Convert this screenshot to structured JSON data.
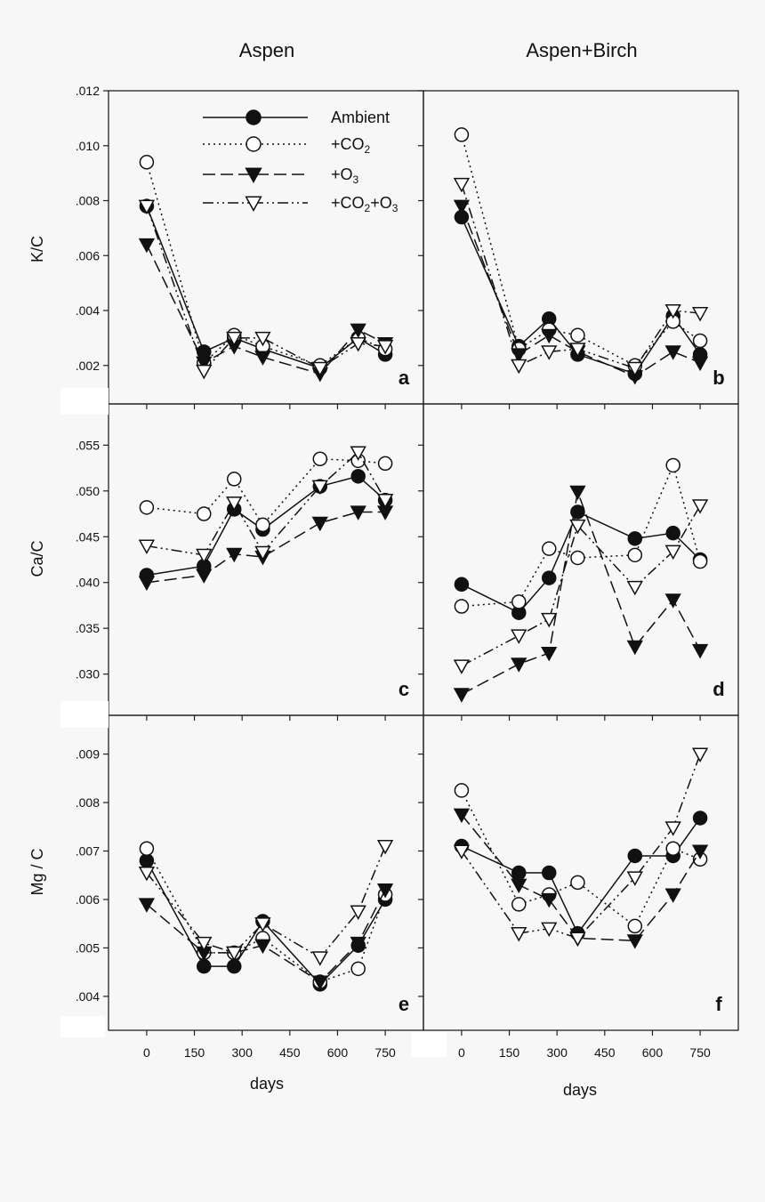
{
  "columns": [
    "Aspen",
    "Aspen+Birch"
  ],
  "row_labels": [
    "K/C",
    "Ca/C",
    "Mg / C"
  ],
  "xlabel": "days",
  "legend": [
    {
      "key": "ambient",
      "prefix": "Ambient",
      "sub": "",
      "mid": "",
      "sub2": ""
    },
    {
      "key": "co2",
      "prefix": "+CO",
      "sub": "2",
      "mid": "",
      "sub2": ""
    },
    {
      "key": "o3",
      "prefix": "+O",
      "sub": "3",
      "mid": "",
      "sub2": ""
    },
    {
      "key": "co2o3",
      "prefix": "+CO",
      "sub": "2",
      "mid": "+O",
      "sub2": "3"
    }
  ],
  "chart_data": [
    {
      "type": "line",
      "panel": "a",
      "ylabel": "K/C",
      "column": "Aspen",
      "ylim": [
        0.0006,
        0.012
      ],
      "ytick_values": [
        0.002,
        0.004,
        0.006,
        0.008,
        0.01,
        0.012
      ],
      "ytick_labels": [
        ".002",
        ".004",
        ".006",
        ".008",
        ".010",
        ".012"
      ],
      "xlim": [
        -120,
        870
      ],
      "xticks": [
        0,
        150,
        300,
        450,
        600,
        750
      ],
      "series": [
        {
          "name": "Ambient",
          "x": [
            0,
            180,
            275,
            365,
            545,
            665,
            750
          ],
          "y": [
            0.0078,
            0.0025,
            0.003,
            0.0026,
            0.0019,
            0.003,
            0.0024
          ]
        },
        {
          "name": "+CO2",
          "x": [
            0,
            180,
            275,
            365,
            545,
            665,
            750
          ],
          "y": [
            0.0094,
            0.0021,
            0.0031,
            0.0027,
            0.002,
            0.003,
            0.0026
          ]
        },
        {
          "name": "+O3",
          "x": [
            0,
            180,
            275,
            365,
            545,
            665,
            750
          ],
          "y": [
            0.0064,
            0.0021,
            0.0027,
            0.0023,
            0.0017,
            0.0033,
            0.0028
          ]
        },
        {
          "name": "+CO2+O3",
          "x": [
            0,
            180,
            275,
            365,
            545,
            665,
            750
          ],
          "y": [
            0.0078,
            0.0018,
            0.003,
            0.003,
            0.0019,
            0.0028,
            0.0027
          ]
        }
      ]
    },
    {
      "type": "line",
      "panel": "b",
      "ylabel": "",
      "column": "Aspen+Birch",
      "ylim": [
        0.0006,
        0.012
      ],
      "ytick_values": [
        0.002,
        0.004,
        0.006,
        0.008,
        0.01,
        0.012
      ],
      "ytick_labels": [],
      "xlim": [
        -120,
        870
      ],
      "xticks": [
        0,
        150,
        300,
        450,
        600,
        750
      ],
      "series": [
        {
          "name": "Ambient",
          "x": [
            0,
            180,
            275,
            365,
            545,
            665,
            750
          ],
          "y": [
            0.0074,
            0.0027,
            0.0037,
            0.0024,
            0.0017,
            0.0038,
            0.0024
          ]
        },
        {
          "name": "+CO2",
          "x": [
            0,
            180,
            275,
            365,
            545,
            665,
            750
          ],
          "y": [
            0.0104,
            0.0026,
            0.0033,
            0.0031,
            0.002,
            0.0036,
            0.0029
          ]
        },
        {
          "name": "+O3",
          "x": [
            0,
            180,
            275,
            365,
            545,
            665,
            750
          ],
          "y": [
            0.0078,
            0.0024,
            0.0031,
            0.0025,
            0.0016,
            0.0025,
            0.0021
          ]
        },
        {
          "name": "+CO2+O3",
          "x": [
            0,
            180,
            275,
            365,
            545,
            665,
            750
          ],
          "y": [
            0.0086,
            0.002,
            0.0025,
            0.0026,
            0.0019,
            0.004,
            0.0039
          ]
        }
      ]
    },
    {
      "type": "line",
      "panel": "c",
      "ylabel": "Ca/C",
      "column": "Aspen",
      "ylim": [
        0.0255,
        0.0595
      ],
      "ytick_values": [
        0.03,
        0.035,
        0.04,
        0.045,
        0.05,
        0.055
      ],
      "ytick_labels": [
        ".030",
        ".035",
        ".040",
        ".045",
        ".050",
        ".055"
      ],
      "xlim": [
        -120,
        870
      ],
      "xticks": [
        0,
        150,
        300,
        450,
        600,
        750
      ],
      "series": [
        {
          "name": "Ambient",
          "x": [
            0,
            180,
            275,
            365,
            545,
            665,
            750
          ],
          "y": [
            0.0408,
            0.0418,
            0.048,
            0.0458,
            0.0505,
            0.0516,
            0.049
          ]
        },
        {
          "name": "+CO2",
          "x": [
            0,
            180,
            275,
            365,
            545,
            665,
            750
          ],
          "y": [
            0.0482,
            0.0475,
            0.0513,
            0.0463,
            0.0535,
            0.0533,
            0.053
          ]
        },
        {
          "name": "+O3",
          "x": [
            0,
            180,
            275,
            365,
            545,
            665,
            750
          ],
          "y": [
            0.04,
            0.0408,
            0.0431,
            0.0428,
            0.0465,
            0.0477,
            0.0477
          ]
        },
        {
          "name": "+CO2+O3",
          "x": [
            0,
            180,
            275,
            365,
            545,
            665,
            750
          ],
          "y": [
            0.044,
            0.043,
            0.0487,
            0.0433,
            0.0505,
            0.0542,
            0.049
          ]
        }
      ]
    },
    {
      "type": "line",
      "panel": "d",
      "ylabel": "",
      "column": "Aspen+Birch",
      "ylim": [
        0.0255,
        0.0595
      ],
      "ytick_values": [
        0.03,
        0.035,
        0.04,
        0.045,
        0.05,
        0.055
      ],
      "ytick_labels": [],
      "xlim": [
        -120,
        870
      ],
      "xticks": [
        0,
        150,
        300,
        450,
        600,
        750
      ],
      "series": [
        {
          "name": "Ambient",
          "x": [
            0,
            180,
            275,
            365,
            545,
            665,
            750
          ],
          "y": [
            0.0398,
            0.0367,
            0.0405,
            0.0477,
            0.0448,
            0.0454,
            0.0425
          ]
        },
        {
          "name": "+CO2",
          "x": [
            0,
            180,
            275,
            365,
            545,
            665,
            750
          ],
          "y": [
            0.0374,
            0.0379,
            0.0437,
            0.0427,
            0.043,
            0.0528,
            0.0423
          ]
        },
        {
          "name": "+O3",
          "x": [
            0,
            180,
            275,
            365,
            545,
            665,
            750
          ],
          "y": [
            0.0278,
            0.0311,
            0.0323,
            0.0499,
            0.033,
            0.0381,
            0.0326
          ]
        },
        {
          "name": "+CO2+O3",
          "x": [
            0,
            180,
            275,
            365,
            545,
            665,
            750
          ],
          "y": [
            0.0309,
            0.0342,
            0.036,
            0.0462,
            0.0395,
            0.0434,
            0.0484
          ]
        }
      ]
    },
    {
      "type": "line",
      "panel": "e",
      "ylabel": "Mg / C",
      "column": "Aspen",
      "ylim": [
        0.0033,
        0.0098
      ],
      "ytick_values": [
        0.004,
        0.005,
        0.006,
        0.007,
        0.008,
        0.009
      ],
      "ytick_labels": [
        ".004",
        ".005",
        ".006",
        ".007",
        ".008",
        ".009"
      ],
      "xlim": [
        -120,
        870
      ],
      "xticks": [
        0,
        150,
        300,
        450,
        600,
        750
      ],
      "series": [
        {
          "name": "Ambient",
          "x": [
            0,
            180,
            275,
            365,
            545,
            665,
            750
          ],
          "y": [
            0.0068,
            0.00462,
            0.00462,
            0.00555,
            0.00425,
            0.00505,
            0.006
          ]
        },
        {
          "name": "+CO2",
          "x": [
            0,
            180,
            275,
            365,
            545,
            665,
            750
          ],
          "y": [
            0.00705,
            0.0049,
            0.0049,
            0.0052,
            0.0043,
            0.00457,
            0.0061
          ]
        },
        {
          "name": "+O3",
          "x": [
            0,
            180,
            275,
            365,
            545,
            665,
            750
          ],
          "y": [
            0.0059,
            0.0049,
            0.0049,
            0.00505,
            0.0043,
            0.0051,
            0.0062
          ]
        },
        {
          "name": "+CO2+O3",
          "x": [
            0,
            180,
            275,
            365,
            545,
            665,
            750
          ],
          "y": [
            0.00655,
            0.0051,
            0.0049,
            0.0055,
            0.0048,
            0.00575,
            0.0071
          ]
        }
      ]
    },
    {
      "type": "line",
      "panel": "f",
      "ylabel": "",
      "column": "Aspen+Birch",
      "ylim": [
        0.0033,
        0.0098
      ],
      "ytick_values": [
        0.004,
        0.005,
        0.006,
        0.007,
        0.008,
        0.009
      ],
      "ytick_labels": [],
      "xlim": [
        -120,
        870
      ],
      "xticks": [
        0,
        150,
        300,
        450,
        600,
        750
      ],
      "series": [
        {
          "name": "Ambient",
          "x": [
            0,
            180,
            275,
            365,
            545,
            665,
            750
          ],
          "y": [
            0.0071,
            0.00655,
            0.00655,
            0.0053,
            0.0069,
            0.0069,
            0.00768
          ]
        },
        {
          "name": "+CO2",
          "x": [
            0,
            180,
            275,
            365,
            545,
            665,
            750
          ],
          "y": [
            0.00825,
            0.0059,
            0.0061,
            0.00635,
            0.00545,
            0.00705,
            0.00683
          ]
        },
        {
          "name": "+O3",
          "x": [
            0,
            180,
            275,
            365,
            545,
            665,
            750
          ],
          "y": [
            0.00775,
            0.0063,
            0.006,
            0.0052,
            0.00515,
            0.0061,
            0.007
          ]
        },
        {
          "name": "+CO2+O3",
          "x": [
            0,
            180,
            275,
            365,
            545,
            665,
            750
          ],
          "y": [
            0.007,
            0.0053,
            0.0054,
            0.0052,
            0.00645,
            0.00748,
            0.009
          ]
        }
      ]
    }
  ]
}
